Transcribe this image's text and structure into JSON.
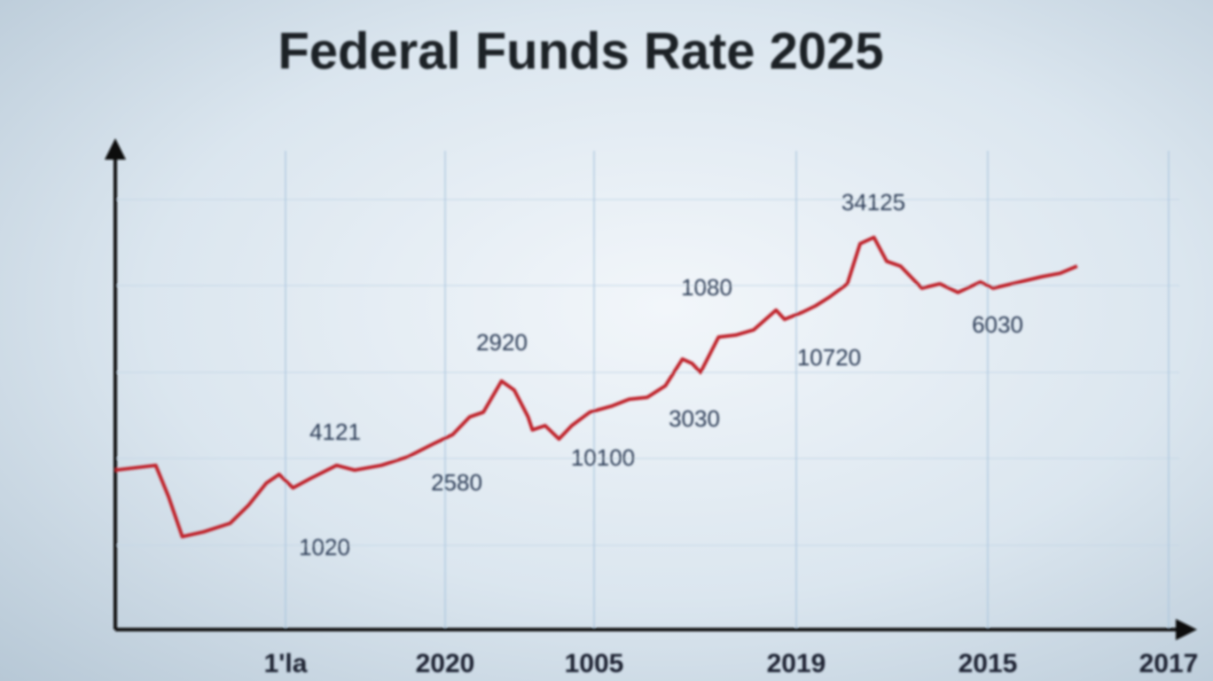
{
  "chart_data": {
    "type": "line",
    "title": "Federal Funds Rate 2025",
    "x": [
      0,
      3.8,
      5,
      6.3,
      8.3,
      10.8,
      12.5,
      14.2,
      15.4,
      16.7,
      18.3,
      20.8,
      22.5,
      25,
      27.5,
      30,
      31.7,
      33.3,
      34.6,
      36.3,
      37.5,
      38.8,
      39.2,
      40.4,
      41.7,
      42.9,
      44.6,
      46.7,
      48.3,
      50,
      51.7,
      53.3,
      54.2,
      55,
      56.7,
      58.3,
      60,
      62.1,
      62.9,
      64.6,
      65.8,
      67.1,
      68.8,
      70,
      71.3,
      72.5,
      73.8,
      75.8,
      77.5,
      79.2,
      81.3,
      82.5,
      85,
      87.1,
      88.8,
      90.4
    ],
    "series": [
      {
        "color": "#c0202a",
        "values": [
          3.33,
          3.43,
          2.78,
          1.94,
          2.04,
          2.22,
          2.59,
          3.06,
          3.24,
          2.96,
          3.15,
          3.43,
          3.33,
          3.43,
          3.61,
          3.89,
          4.07,
          4.44,
          4.54,
          5.19,
          5,
          4.44,
          4.17,
          4.26,
          3.98,
          4.26,
          4.54,
          4.67,
          4.81,
          4.85,
          5.09,
          5.65,
          5.56,
          5.37,
          6.11,
          6.15,
          6.26,
          6.67,
          6.48,
          6.63,
          6.76,
          6.94,
          7.22,
          8.06,
          8.19,
          7.69,
          7.59,
          7.13,
          7.22,
          7.04,
          7.26,
          7.13,
          7.26,
          7.37,
          7.44,
          7.59
        ]
      }
    ],
    "xlim": [
      0,
      100
    ],
    "ylim": [
      0,
      10
    ],
    "xticks": [
      {
        "value": 16,
        "label": "1'la"
      },
      {
        "value": 31,
        "label": "2020"
      },
      {
        "value": 45,
        "label": "1005"
      },
      {
        "value": 64,
        "label": "2019"
      },
      {
        "value": 82,
        "label": "2015"
      },
      {
        "value": 99,
        "label": "2017"
      }
    ],
    "grid": true,
    "annotations": [
      "34125",
      "1080",
      "2920",
      "10720",
      "3030",
      "10100",
      "2580",
      "4121",
      "6030",
      "1020"
    ]
  }
}
